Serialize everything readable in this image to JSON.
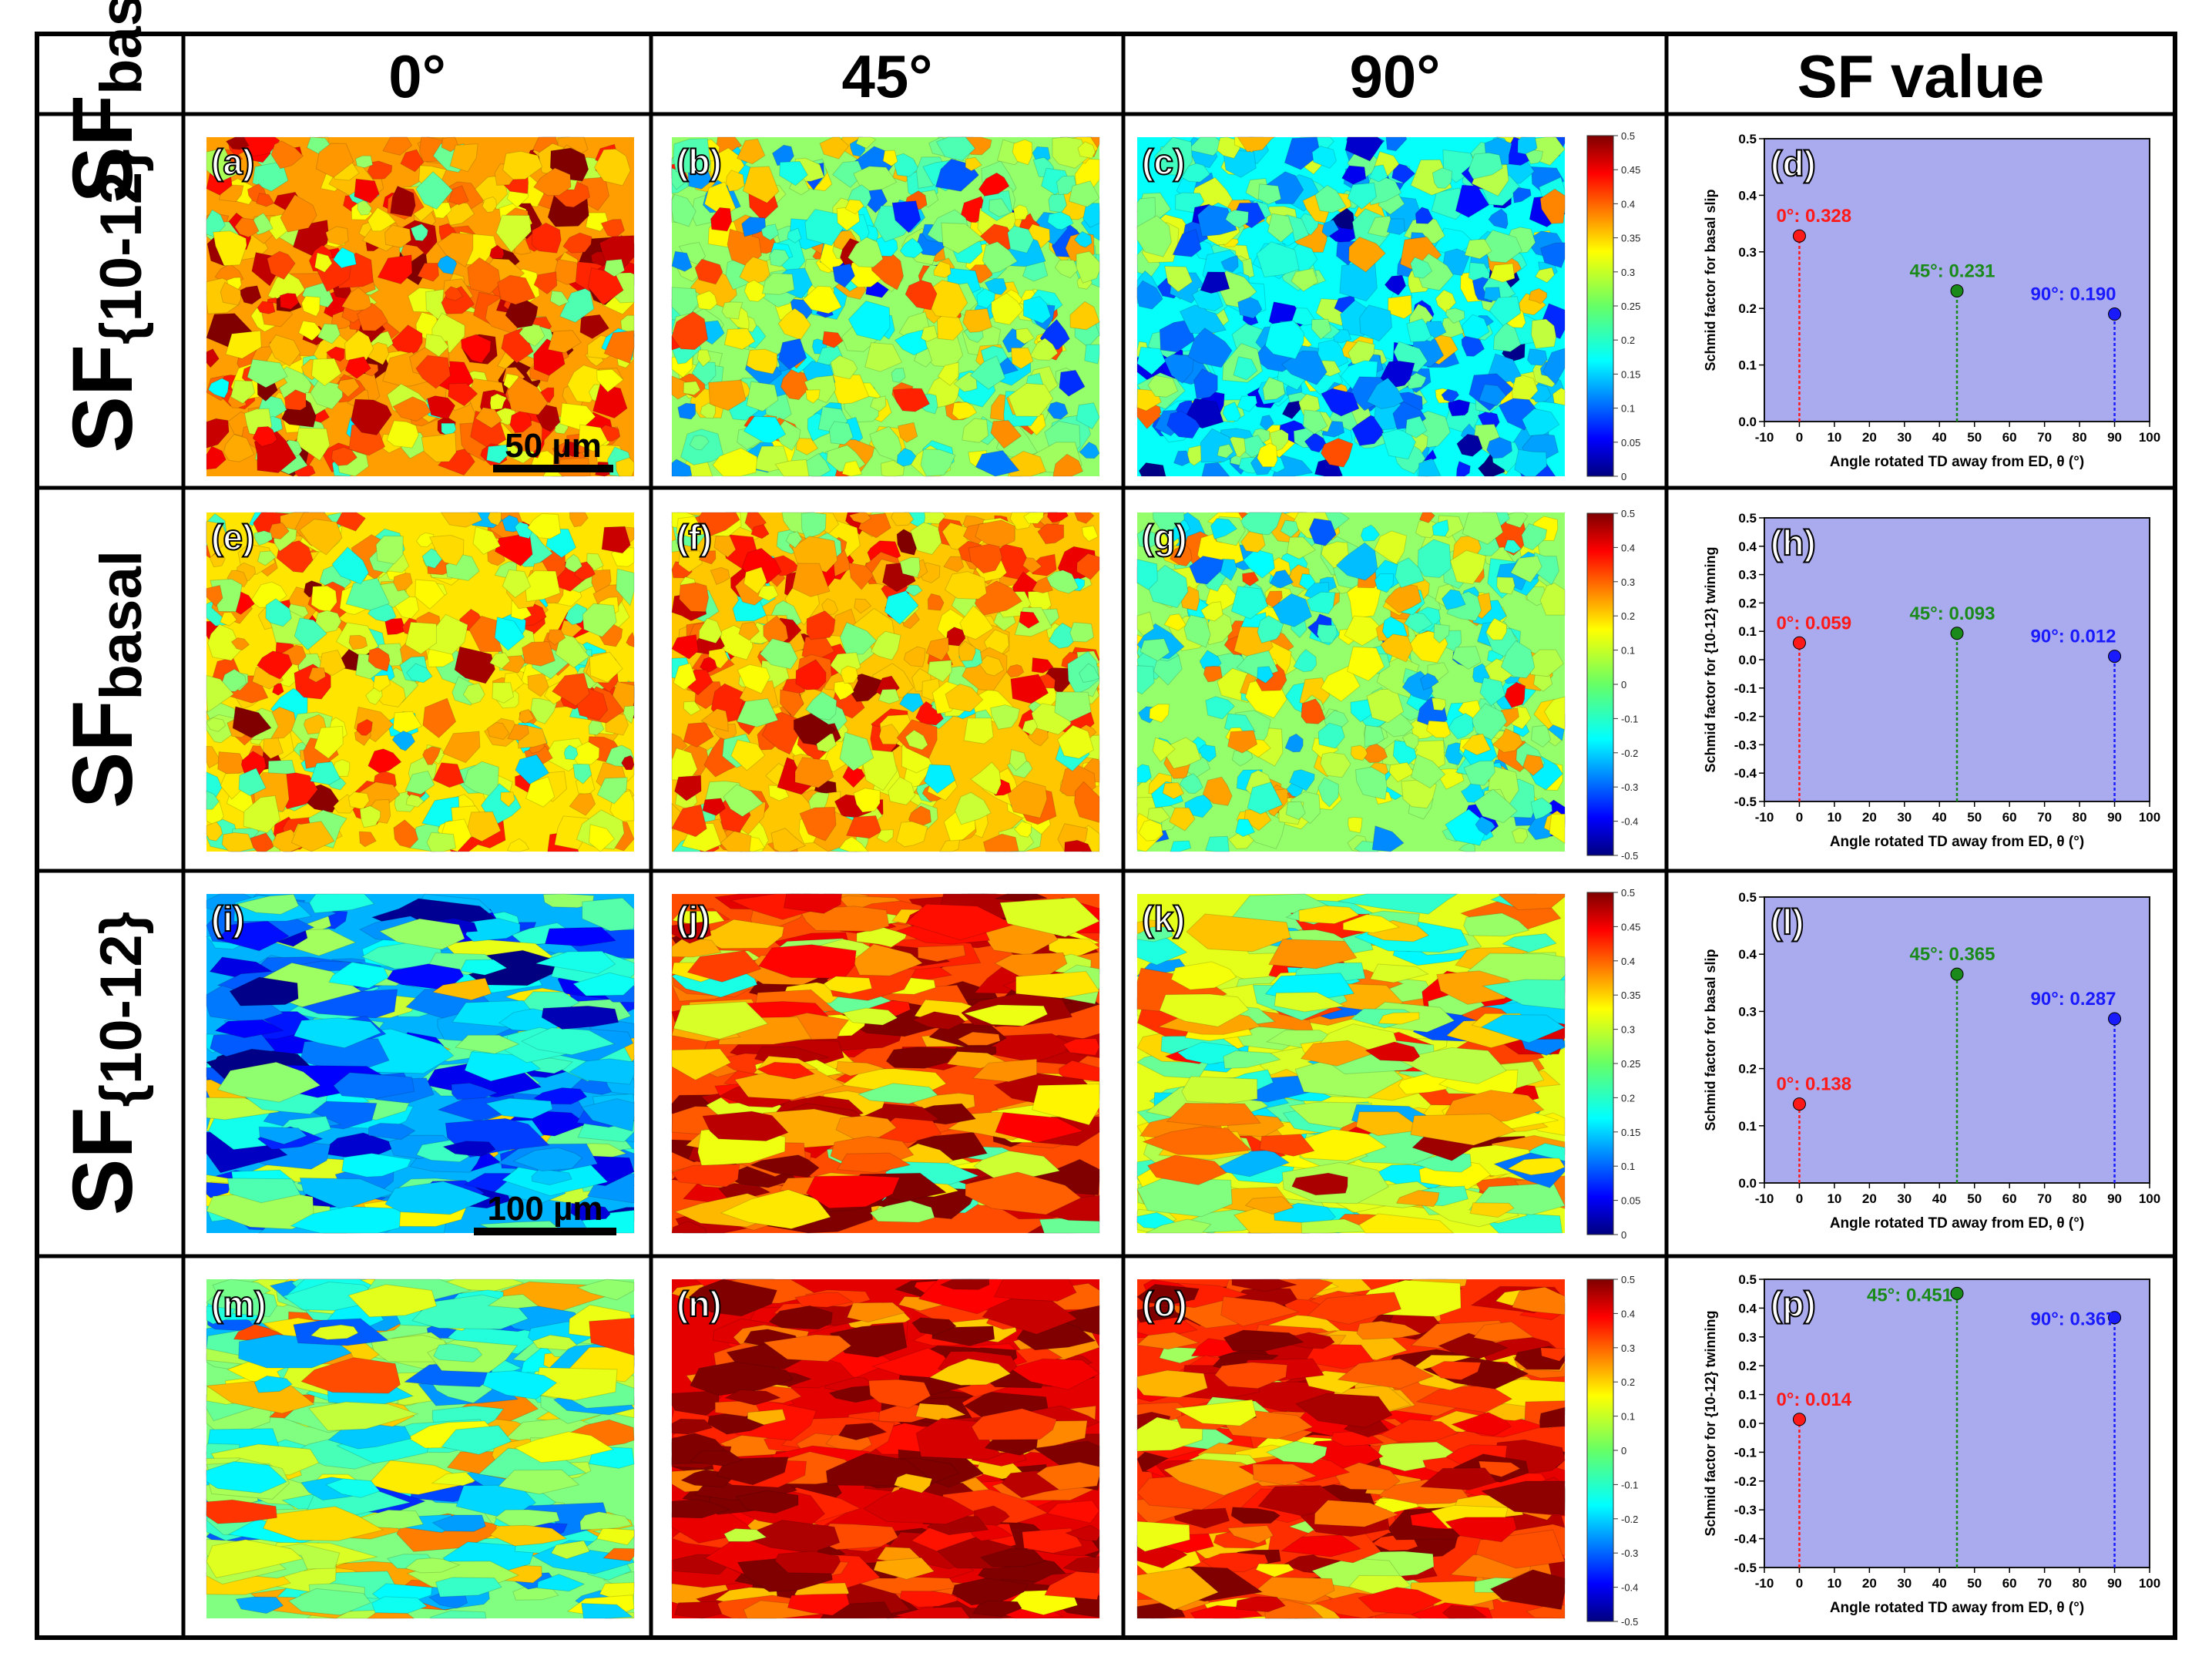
{
  "columns": {
    "blank": "",
    "c0": "0°",
    "c45": "45°",
    "c90": "90°",
    "sf": "SF value"
  },
  "rows": [
    {
      "label": "SF",
      "sub": "basal"
    },
    {
      "label": "SF",
      "sub": "{10-12}"
    },
    {
      "label": "SF",
      "sub": "basal"
    },
    {
      "label": "SF",
      "sub": "{10-12}"
    }
  ],
  "panels": [
    [
      "(a)",
      "(b)",
      "(c)",
      "(d)"
    ],
    [
      "(e)",
      "(f)",
      "(g)",
      "(h)"
    ],
    [
      "(i)",
      "(j)",
      "(k)",
      "(l)"
    ],
    [
      "(m)",
      "(n)",
      "(o)",
      "(p)"
    ]
  ],
  "maps": [
    {
      "scale_bar": "50 µm",
      "means": [
        0.36,
        0.26,
        0.19
      ]
    },
    {
      "means": [
        0.15,
        0.18,
        0.02
      ]
    },
    {
      "scale_bar": "100 µm",
      "means": [
        0.15,
        0.4,
        0.3
      ]
    },
    {
      "means": [
        0.0,
        0.4,
        0.33
      ]
    }
  ],
  "colorbars": [
    {
      "ticks": [
        "0.5",
        "0.45",
        "0.4",
        "0.35",
        "0.3",
        "0.25",
        "0.2",
        "0.15",
        "0.1",
        "0.05",
        "0"
      ]
    },
    {
      "ticks": [
        "0.5",
        "0.4",
        "0.3",
        "0.2",
        "0.1",
        "0",
        "-0.1",
        "-0.2",
        "-0.3",
        "-0.4",
        "-0.5"
      ]
    },
    {
      "ticks": [
        "0.5",
        "0.45",
        "0.4",
        "0.35",
        "0.3",
        "0.25",
        "0.2",
        "0.15",
        "0.1",
        "0.05",
        "0"
      ]
    },
    {
      "ticks": [
        "0.5",
        "0.4",
        "0.3",
        "0.2",
        "0.1",
        "0",
        "-0.1",
        "-0.2",
        "-0.3",
        "-0.4",
        "-0.5"
      ]
    }
  ],
  "chart_data": [
    {
      "type": "scatter",
      "panel": "(d)",
      "xlabel": "Angle rotated TD away from ED, θ (°)",
      "ylabel": "Schmid factor for basal slip",
      "xlim": [
        -10,
        100
      ],
      "ylim": [
        0.0,
        0.5
      ],
      "xticks": [
        "-10",
        "0",
        "10",
        "20",
        "30",
        "40",
        "50",
        "60",
        "70",
        "80",
        "90",
        "100"
      ],
      "yticks": [
        "0.0",
        "0.1",
        "0.2",
        "0.3",
        "0.4",
        "0.5"
      ],
      "points": [
        {
          "x": 0,
          "y": 0.328,
          "label": "0°: 0.328",
          "color": "#ff1a1a"
        },
        {
          "x": 45,
          "y": 0.231,
          "label": "45°: 0.231",
          "color": "#1a8a1a"
        },
        {
          "x": 90,
          "y": 0.19,
          "label": "90°: 0.190",
          "color": "#1a1aff"
        }
      ]
    },
    {
      "type": "scatter",
      "panel": "(h)",
      "xlabel": "Angle rotated TD away from ED, θ (°)",
      "ylabel": "Schmid factor for {10-12} twinning",
      "xlim": [
        -10,
        100
      ],
      "ylim": [
        -0.5,
        0.5
      ],
      "xticks": [
        "-10",
        "0",
        "10",
        "20",
        "30",
        "40",
        "50",
        "60",
        "70",
        "80",
        "90",
        "100"
      ],
      "yticks": [
        "-0.5",
        "-0.4",
        "-0.3",
        "-0.2",
        "-0.1",
        "0.0",
        "0.1",
        "0.2",
        "0.3",
        "0.4",
        "0.5"
      ],
      "points": [
        {
          "x": 0,
          "y": 0.059,
          "label": "0°: 0.059",
          "color": "#ff1a1a"
        },
        {
          "x": 45,
          "y": 0.093,
          "label": "45°: 0.093",
          "color": "#1a8a1a"
        },
        {
          "x": 90,
          "y": 0.012,
          "label": "90°: 0.012",
          "color": "#1a1aff"
        }
      ]
    },
    {
      "type": "scatter",
      "panel": "(l)",
      "xlabel": "Angle rotated TD away from ED, θ (°)",
      "ylabel": "Schmid factor for basal slip",
      "xlim": [
        -10,
        100
      ],
      "ylim": [
        0.0,
        0.5
      ],
      "xticks": [
        "-10",
        "0",
        "10",
        "20",
        "30",
        "40",
        "50",
        "60",
        "70",
        "80",
        "90",
        "100"
      ],
      "yticks": [
        "0.0",
        "0.1",
        "0.2",
        "0.3",
        "0.4",
        "0.5"
      ],
      "points": [
        {
          "x": 0,
          "y": 0.138,
          "label": "0°: 0.138",
          "color": "#ff1a1a"
        },
        {
          "x": 45,
          "y": 0.365,
          "label": "45°: 0.365",
          "color": "#1a8a1a"
        },
        {
          "x": 90,
          "y": 0.287,
          "label": "90°: 0.287",
          "color": "#1a1aff"
        }
      ]
    },
    {
      "type": "scatter",
      "panel": "(p)",
      "xlabel": "Angle rotated TD away from ED, θ (°)",
      "ylabel": "Schmid factor for {10-12} twinning",
      "xlim": [
        -10,
        100
      ],
      "ylim": [
        -0.5,
        0.5
      ],
      "xticks": [
        "-10",
        "0",
        "10",
        "20",
        "30",
        "40",
        "50",
        "60",
        "70",
        "80",
        "90",
        "100"
      ],
      "yticks": [
        "-0.5",
        "-0.4",
        "-0.3",
        "-0.2",
        "-0.1",
        "0.0",
        "0.1",
        "0.2",
        "0.3",
        "0.4",
        "0.5"
      ],
      "points": [
        {
          "x": 0,
          "y": 0.014,
          "label": "0°: 0.014",
          "color": "#ff1a1a"
        },
        {
          "x": 45,
          "y": 0.451,
          "label": "45°: 0.451",
          "color": "#1a8a1a"
        },
        {
          "x": 90,
          "y": 0.367,
          "label": "90°: 0.367",
          "color": "#1a1aff"
        }
      ]
    }
  ],
  "colors": {
    "plot_bg": "#aaaaee",
    "grid_line": "#111111"
  }
}
